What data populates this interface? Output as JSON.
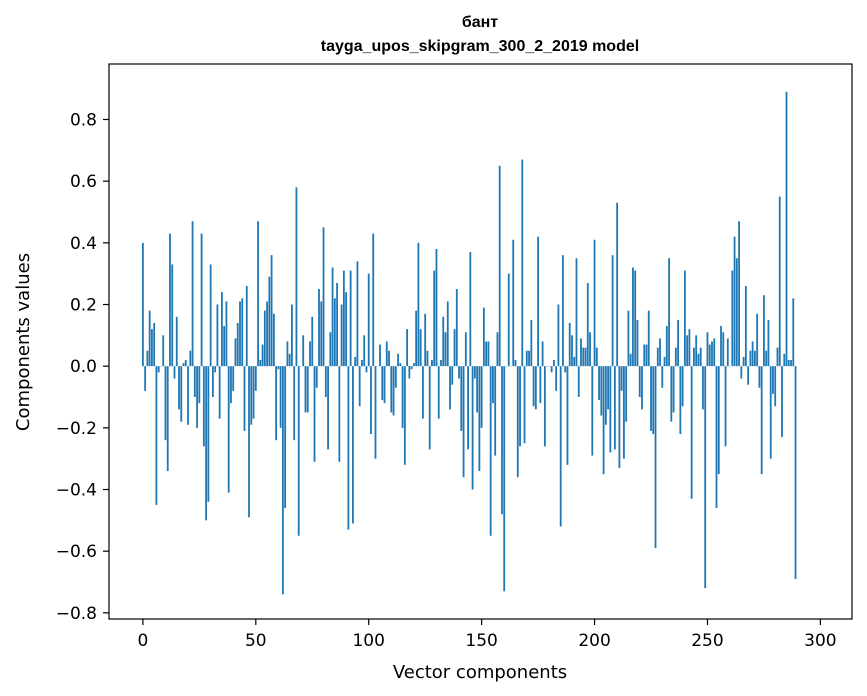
{
  "chart_data": {
    "type": "bar",
    "title": "бант",
    "subtitle": "tayga_upos_skipgram_300_2_2019 model",
    "xlabel": "Vector components",
    "ylabel": "Components values",
    "xlim": [
      -15,
      314
    ],
    "ylim": [
      -0.82,
      0.98
    ],
    "xticks": [
      0,
      50,
      100,
      150,
      200,
      250,
      300
    ],
    "yticks": [
      -0.8,
      -0.6,
      -0.4,
      -0.2,
      0.0,
      0.2,
      0.4,
      0.6,
      0.8
    ],
    "ytick_labels": [
      "−0.8",
      "−0.6",
      "−0.4",
      "−0.2",
      "0.0",
      "0.2",
      "0.4",
      "0.6",
      "0.8"
    ],
    "bar_color": "#1f77b4",
    "values": [
      0.4,
      -0.08,
      0.05,
      0.18,
      0.12,
      0.14,
      -0.45,
      -0.02,
      0.0,
      0.1,
      -0.24,
      -0.34,
      0.43,
      0.33,
      -0.04,
      0.16,
      -0.14,
      -0.18,
      0.01,
      0.02,
      -0.19,
      0.05,
      0.47,
      -0.1,
      -0.2,
      -0.12,
      0.43,
      -0.26,
      -0.5,
      -0.44,
      0.33,
      -0.1,
      -0.02,
      0.2,
      -0.17,
      0.24,
      0.13,
      0.21,
      -0.41,
      -0.12,
      -0.08,
      0.09,
      0.14,
      0.21,
      0.22,
      -0.21,
      0.26,
      -0.49,
      -0.19,
      -0.17,
      -0.08,
      0.47,
      0.02,
      0.07,
      0.18,
      0.21,
      0.29,
      0.36,
      0.17,
      -0.24,
      -0.01,
      -0.2,
      -0.74,
      -0.46,
      0.08,
      0.04,
      0.2,
      -0.24,
      0.58,
      -0.55,
      0.0,
      0.1,
      -0.15,
      -0.15,
      0.08,
      0.16,
      -0.31,
      -0.07,
      0.25,
      0.21,
      0.45,
      -0.1,
      -0.27,
      0.11,
      0.32,
      0.22,
      0.27,
      -0.31,
      0.2,
      0.31,
      0.24,
      -0.53,
      0.31,
      -0.51,
      0.03,
      0.34,
      -0.13,
      0.02,
      0.1,
      -0.02,
      0.3,
      -0.22,
      0.43,
      -0.3,
      0.0,
      0.07,
      -0.11,
      -0.12,
      0.08,
      0.05,
      -0.15,
      -0.16,
      -0.07,
      0.04,
      0.01,
      -0.2,
      -0.32,
      0.12,
      -0.04,
      -0.01,
      0.01,
      0.18,
      0.4,
      0.12,
      -0.17,
      0.17,
      0.05,
      -0.27,
      0.02,
      0.31,
      0.38,
      -0.17,
      0.02,
      0.16,
      0.11,
      0.21,
      -0.14,
      -0.06,
      0.12,
      0.25,
      -0.04,
      -0.21,
      -0.36,
      0.11,
      -0.27,
      0.37,
      -0.4,
      -0.04,
      -0.15,
      -0.34,
      -0.2,
      0.19,
      0.08,
      0.08,
      -0.55,
      -0.12,
      -0.29,
      0.11,
      0.65,
      -0.48,
      -0.73,
      0.0,
      0.3,
      0.0,
      0.41,
      0.02,
      -0.36,
      -0.26,
      0.67,
      -0.25,
      0.05,
      0.05,
      0.15,
      -0.13,
      -0.14,
      0.42,
      -0.12,
      0.08,
      -0.26,
      0.0,
      0.0,
      -0.02,
      0.02,
      -0.08,
      0.2,
      -0.52,
      0.36,
      -0.02,
      -0.32,
      0.14,
      0.1,
      0.03,
      0.35,
      -0.1,
      0.09,
      0.06,
      0.06,
      0.27,
      0.11,
      -0.29,
      0.41,
      0.06,
      -0.11,
      -0.16,
      -0.35,
      -0.19,
      -0.14,
      -0.28,
      0.36,
      -0.27,
      0.53,
      -0.33,
      -0.08,
      -0.3,
      -0.18,
      0.18,
      0.04,
      0.32,
      0.31,
      0.15,
      -0.1,
      -0.14,
      0.07,
      0.07,
      0.18,
      -0.21,
      -0.22,
      -0.59,
      0.06,
      0.09,
      -0.07,
      0.03,
      0.13,
      0.35,
      -0.18,
      -0.15,
      0.06,
      0.15,
      -0.22,
      -0.13,
      0.31,
      0.1,
      0.12,
      -0.43,
      0.06,
      0.1,
      0.04,
      0.06,
      -0.14,
      -0.72,
      0.11,
      0.07,
      0.08,
      0.09,
      -0.46,
      -0.35,
      0.13,
      0.11,
      -0.26,
      0.09,
      0.0,
      0.31,
      0.42,
      0.35,
      0.47,
      -0.04,
      0.03,
      0.26,
      -0.06,
      0.05,
      0.08,
      0.05,
      0.17,
      -0.07,
      -0.35,
      0.23,
      0.05,
      0.15,
      -0.3,
      -0.09,
      -0.13,
      0.06,
      0.55,
      -0.23,
      0.04,
      0.89,
      0.02,
      0.02,
      0.22,
      -0.69
    ]
  }
}
